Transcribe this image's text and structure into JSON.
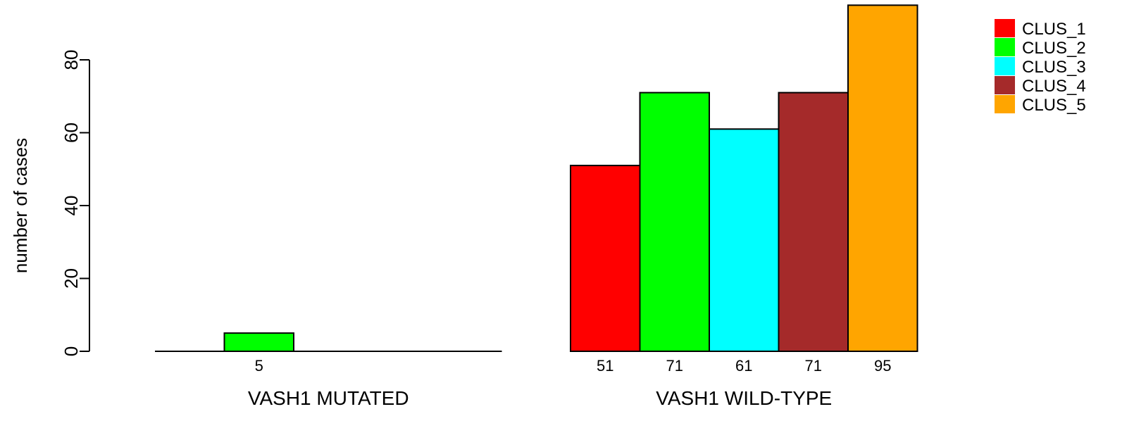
{
  "chart_data": {
    "type": "bar",
    "ylabel": "number of cases",
    "ylim": [
      0,
      95
    ],
    "yticks": [
      0,
      20,
      40,
      60,
      80
    ],
    "series_names": [
      "CLUS_1",
      "CLUS_2",
      "CLUS_3",
      "CLUS_4",
      "CLUS_5"
    ],
    "colors": [
      "#ff0000",
      "#00ff00",
      "#00ffff",
      "#a52a2a",
      "#ffa500"
    ],
    "groups": [
      {
        "name": "VASH1 MUTATED",
        "values": [
          0,
          5,
          0,
          0,
          0
        ],
        "value_labels": [
          "",
          "5",
          "",
          "",
          ""
        ]
      },
      {
        "name": "VASH1 WILD-TYPE",
        "values": [
          51,
          71,
          61,
          71,
          95
        ],
        "value_labels": [
          "51",
          "71",
          "61",
          "71",
          "95"
        ]
      }
    ],
    "legend": {
      "position": "top-right",
      "entries": [
        "CLUS_1",
        "CLUS_2",
        "CLUS_3",
        "CLUS_4",
        "CLUS_5"
      ]
    }
  }
}
